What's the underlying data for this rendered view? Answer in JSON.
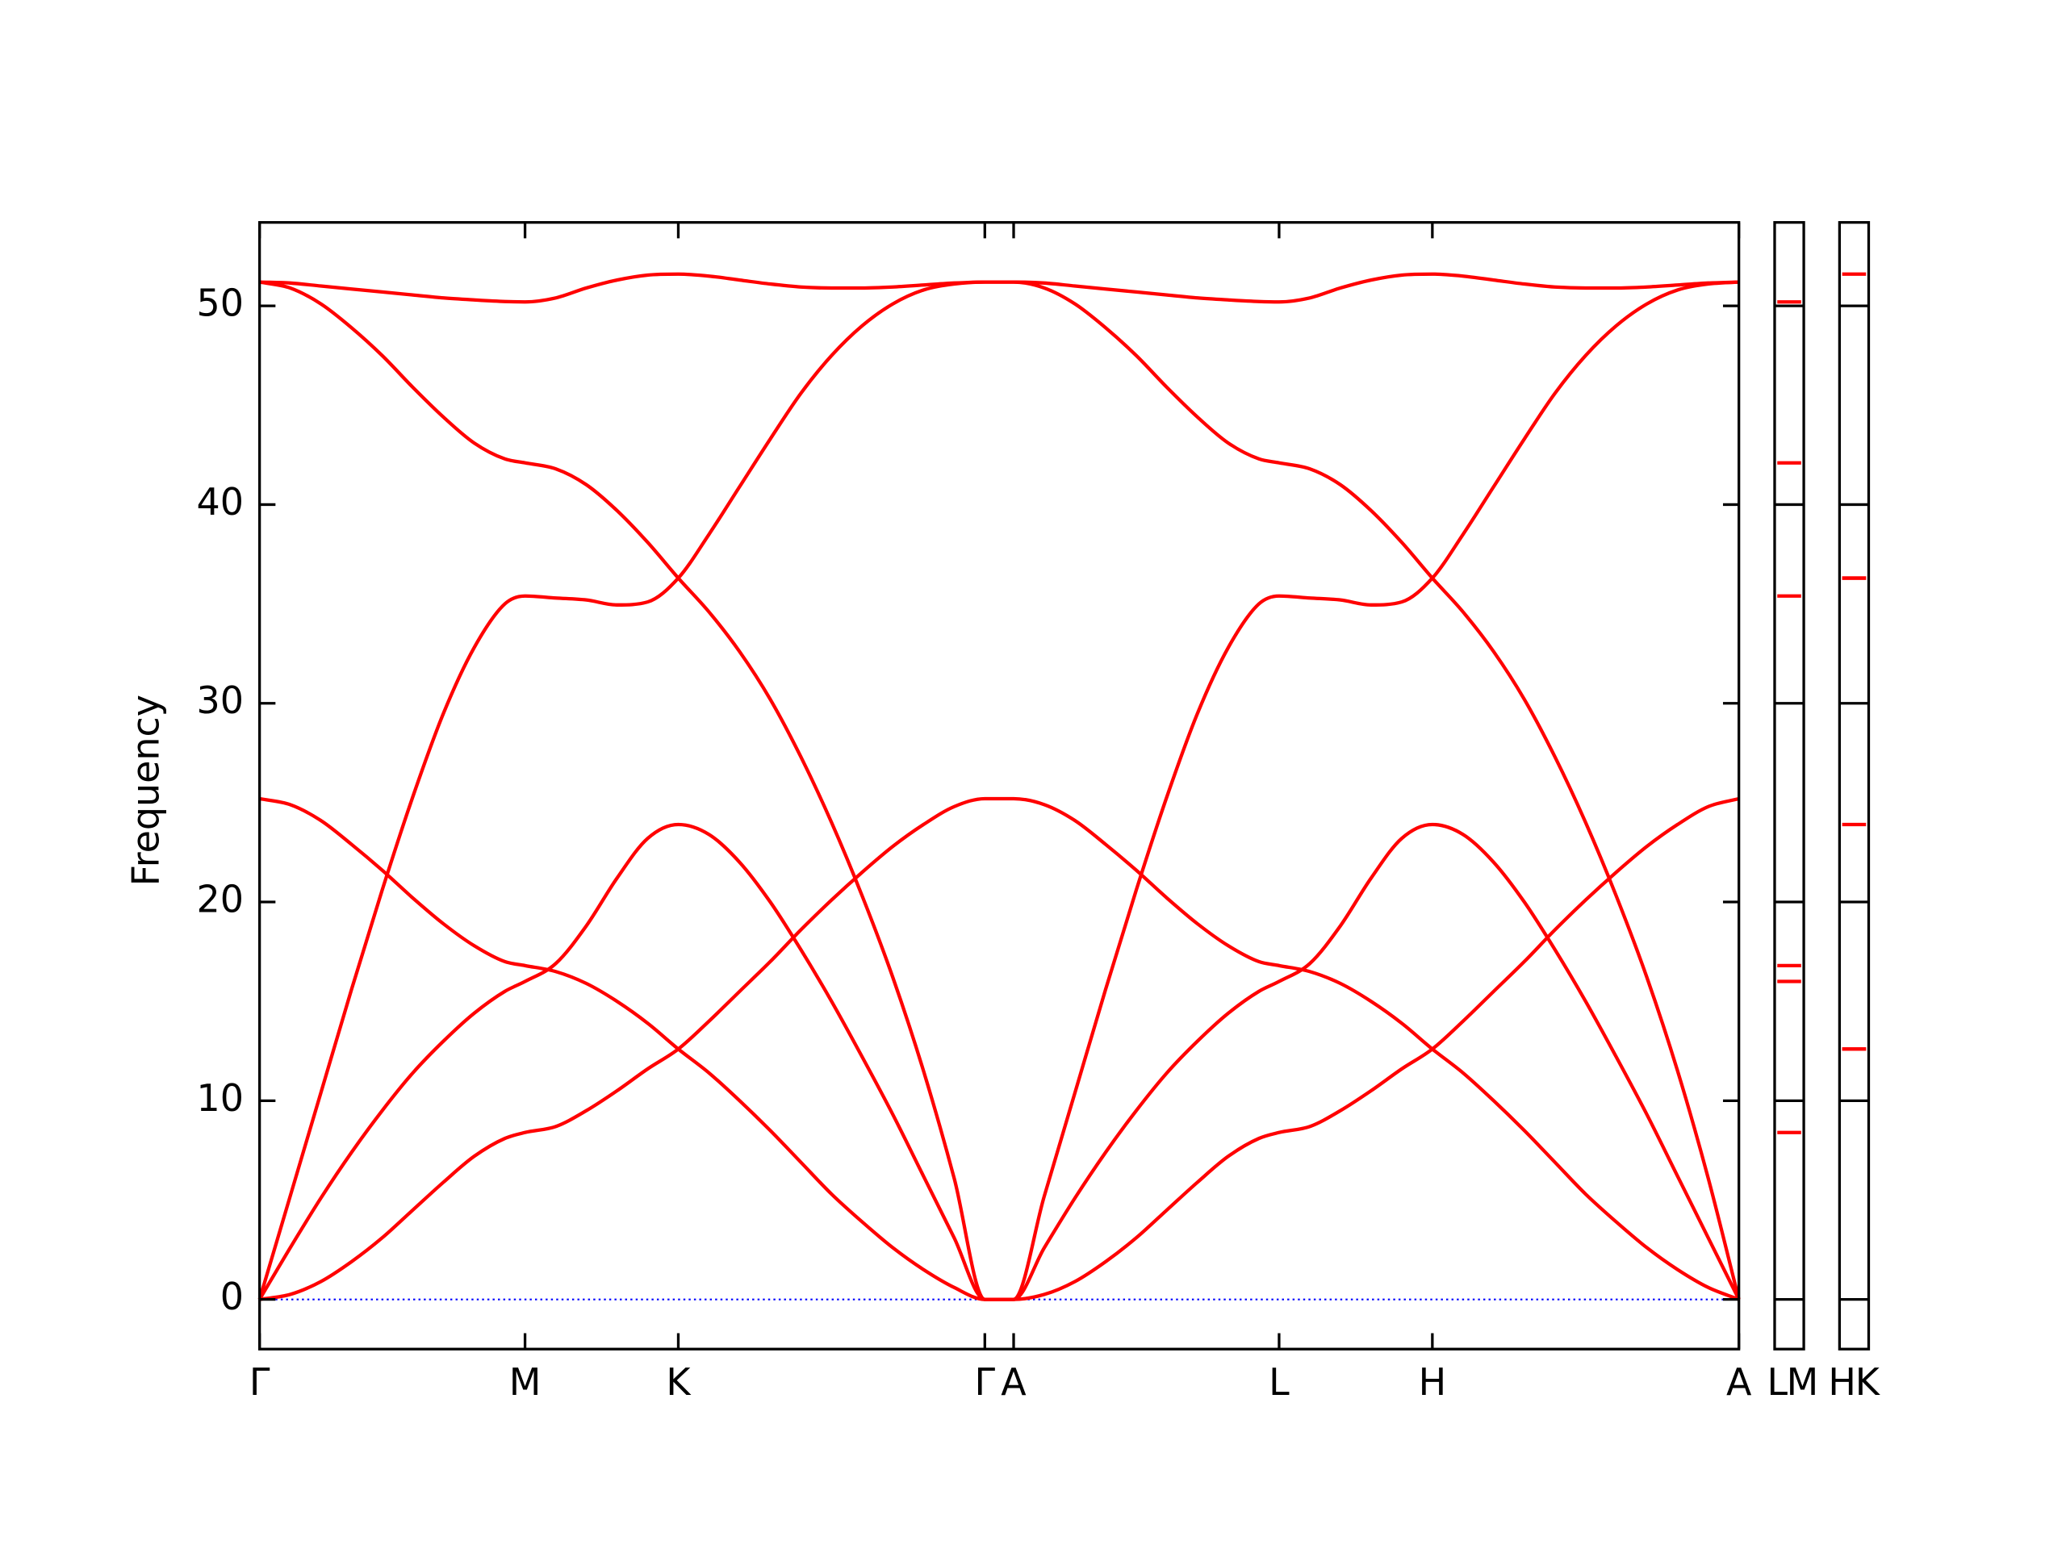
{
  "chart_data": {
    "type": "line",
    "y_label": "Frequency",
    "x": [
      0,
      0.1,
      0.2,
      0.3,
      0.4,
      0.5,
      0.6,
      0.7,
      0.8,
      0.866,
      0.966,
      1.066,
      1.166,
      1.266,
      1.366,
      1.466,
      1.566,
      1.666,
      1.766,
      1.866,
      1.966,
      2.066,
      2.166,
      2.266,
      2.366,
      2.46,
      2.56,
      2.66,
      2.76,
      2.86,
      2.96,
      3.06,
      3.16,
      3.26,
      3.326,
      3.426,
      3.526,
      3.626,
      3.726,
      3.826,
      3.926,
      4.026,
      4.126,
      4.226,
      4.326,
      4.426,
      4.526,
      4.626,
      4.726,
      4.826
    ],
    "xlim": [
      0,
      4.826
    ],
    "xticks": [
      {
        "value": 0,
        "label": "Γ"
      },
      {
        "value": 0.866,
        "label": "M"
      },
      {
        "value": 1.366,
        "label": "K"
      },
      {
        "value": 2.366,
        "label": "Γ"
      },
      {
        "value": 2.46,
        "label": "A"
      },
      {
        "value": 3.326,
        "label": "L"
      },
      {
        "value": 3.826,
        "label": "H"
      },
      {
        "value": 4.826,
        "label": "A"
      }
    ],
    "ylim": [
      -2.5,
      54.2
    ],
    "yticks": [
      0,
      10,
      20,
      30,
      40,
      50
    ],
    "series": [
      {
        "color": "#ff0000",
        "values": [
          0,
          0.25,
          0.9,
          1.9,
          3.1,
          4.5,
          5.9,
          7.2,
          8.1,
          8.4,
          8.7,
          9.5,
          10.5,
          11.6,
          12.6,
          14.0,
          15.5,
          17.0,
          18.6,
          20.1,
          21.5,
          22.8,
          23.9,
          24.8,
          25.2,
          25.2,
          24.9,
          24.1,
          22.9,
          21.6,
          20.2,
          18.9,
          17.8,
          17.0,
          16.8,
          16.5,
          15.9,
          15.0,
          13.9,
          12.6,
          11.4,
          10.0,
          8.5,
          6.9,
          5.3,
          3.9,
          2.6,
          1.5,
          0.6,
          0
        ]
      },
      {
        "color": "#ff0000",
        "values": [
          0,
          2.6,
          5.1,
          7.4,
          9.5,
          11.4,
          13.0,
          14.4,
          15.5,
          16.0,
          16.9,
          18.8,
          21.2,
          23.2,
          23.9,
          23.4,
          22.0,
          20.0,
          17.6,
          15.0,
          12.2,
          9.3,
          6.2,
          3.1,
          0,
          0,
          0.25,
          0.9,
          1.9,
          3.1,
          4.5,
          5.9,
          7.2,
          8.1,
          8.4,
          8.7,
          9.5,
          10.5,
          11.6,
          12.6,
          14.0,
          15.5,
          17.0,
          18.6,
          20.1,
          21.5,
          22.8,
          23.9,
          24.8,
          25.2
        ]
      },
      {
        "color": "#ff0000",
        "values": [
          25.2,
          24.9,
          24.1,
          22.9,
          21.6,
          20.2,
          18.9,
          17.8,
          17.0,
          16.8,
          16.5,
          15.9,
          15.0,
          13.9,
          12.6,
          11.4,
          10.0,
          8.5,
          6.9,
          5.3,
          3.9,
          2.6,
          1.5,
          0.6,
          0,
          0,
          2.6,
          5.1,
          7.4,
          9.5,
          11.4,
          13.0,
          14.4,
          15.5,
          16.0,
          16.9,
          18.8,
          21.2,
          23.2,
          23.9,
          23.4,
          22.0,
          20.0,
          17.6,
          15.0,
          12.2,
          9.3,
          6.2,
          3.1,
          0
        ]
      },
      {
        "color": "#ff0000",
        "values": [
          0,
          5.2,
          10.4,
          15.6,
          20.6,
          25.3,
          29.5,
          32.8,
          35.0,
          35.4,
          35.3,
          35.2,
          34.95,
          35.1,
          36.3,
          38.5,
          40.9,
          43.3,
          45.6,
          47.5,
          49.0,
          50.1,
          50.8,
          51.1,
          51.2,
          51.2,
          50.9,
          50.1,
          48.9,
          47.5,
          45.9,
          44.4,
          43.1,
          42.3,
          42.1,
          41.8,
          41.0,
          39.7,
          38.1,
          36.3,
          34.6,
          32.6,
          30.2,
          27.3,
          24.0,
          20.3,
          16.2,
          11.5,
          6.1,
          0
        ]
      },
      {
        "color": "#ff0000",
        "values": [
          51.2,
          50.9,
          50.1,
          48.9,
          47.5,
          45.9,
          44.4,
          43.1,
          42.3,
          42.1,
          41.8,
          41.0,
          39.7,
          38.1,
          36.3,
          34.6,
          32.6,
          30.2,
          27.3,
          24.0,
          20.3,
          16.2,
          11.5,
          6.1,
          0,
          0,
          5.2,
          10.4,
          15.6,
          20.6,
          25.3,
          29.5,
          32.8,
          35.0,
          35.4,
          35.3,
          35.2,
          34.95,
          35.1,
          36.3,
          38.5,
          40.9,
          43.3,
          45.6,
          47.5,
          49.0,
          50.1,
          50.8,
          51.1,
          51.2
        ]
      },
      {
        "color": "#ff0000",
        "values": [
          51.2,
          51.15,
          51.0,
          50.85,
          50.7,
          50.55,
          50.4,
          50.3,
          50.22,
          50.2,
          50.4,
          50.9,
          51.3,
          51.55,
          51.6,
          51.5,
          51.3,
          51.1,
          50.95,
          50.9,
          50.9,
          50.95,
          51.05,
          51.15,
          51.2,
          51.2,
          51.15,
          51.0,
          50.85,
          50.7,
          50.55,
          50.4,
          50.3,
          50.22,
          50.2,
          50.4,
          50.9,
          51.3,
          51.55,
          51.6,
          51.5,
          51.3,
          51.1,
          50.95,
          50.9,
          50.9,
          50.95,
          51.05,
          51.15,
          51.2
        ]
      }
    ],
    "hline": {
      "value": 0,
      "color": "#0000ff",
      "style": "dotted"
    },
    "side_panels": [
      {
        "labels": [
          "L",
          "M"
        ],
        "color": "#ff0000",
        "values": [
          8.4,
          16.0,
          16.8,
          35.4,
          42.1,
          50.2
        ]
      },
      {
        "labels": [
          "H",
          "K"
        ],
        "color": "#ff0000",
        "values": [
          12.6,
          12.6,
          23.9,
          36.3,
          36.3,
          51.6
        ]
      }
    ]
  }
}
